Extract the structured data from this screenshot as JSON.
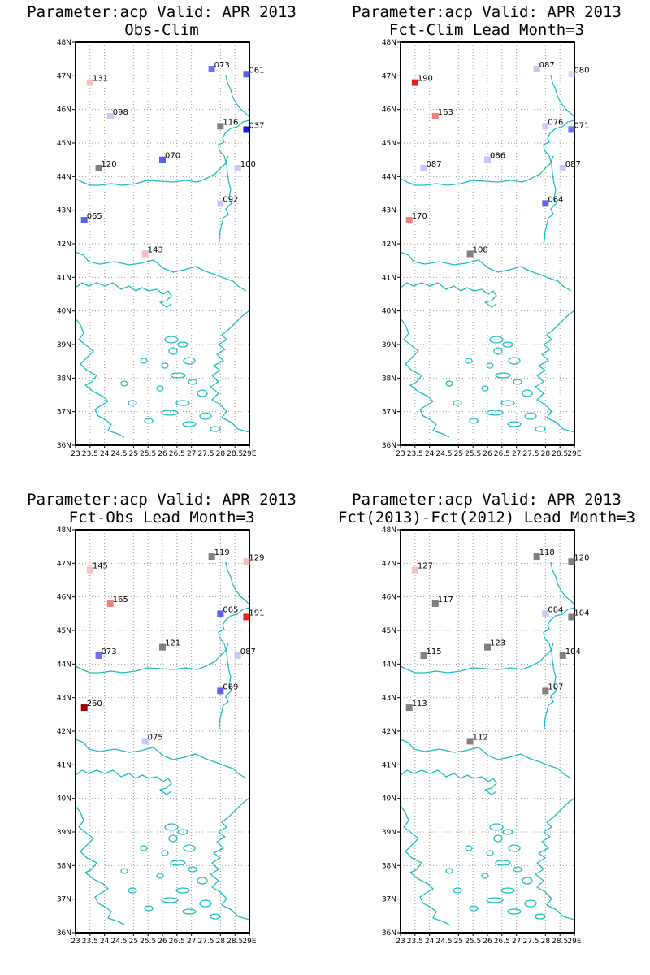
{
  "panels": [
    {
      "title_line1": "Parameter:acp Valid: APR 2013",
      "title_line2": "Obs-Clim",
      "stations": [
        {
          "lon": 23.5,
          "lat": 46.8,
          "label": "131",
          "color": "#f7c0c0"
        },
        {
          "lon": 27.7,
          "lat": 47.2,
          "label": "073",
          "color": "#7070f0"
        },
        {
          "lon": 28.9,
          "lat": 47.05,
          "label": "061",
          "color": "#5a5af0"
        },
        {
          "lon": 24.2,
          "lat": 45.8,
          "label": "098",
          "color": "#c8c8f8"
        },
        {
          "lon": 28.0,
          "lat": 45.5,
          "label": "116",
          "color": "#808080"
        },
        {
          "lon": 28.9,
          "lat": 45.4,
          "label": "037",
          "color": "#1818e8"
        },
        {
          "lon": 26.0,
          "lat": 44.5,
          "label": "070",
          "color": "#6060f0"
        },
        {
          "lon": 23.8,
          "lat": 44.25,
          "label": "120",
          "color": "#808080"
        },
        {
          "lon": 28.6,
          "lat": 44.25,
          "label": "100",
          "color": "#c8c8f8"
        },
        {
          "lon": 28.0,
          "lat": 43.2,
          "label": "092",
          "color": "#c8c8f8"
        },
        {
          "lon": 23.3,
          "lat": 42.7,
          "label": "065",
          "color": "#6060f0"
        },
        {
          "lon": 25.4,
          "lat": 41.7,
          "label": "143",
          "color": "#f7c0c0"
        }
      ]
    },
    {
      "title_line1": "Parameter:acp Valid: APR 2013",
      "title_line2": "Fct-Clim Lead Month=3",
      "stations": [
        {
          "lon": 23.5,
          "lat": 46.8,
          "label": "190",
          "color": "#f02020"
        },
        {
          "lon": 27.7,
          "lat": 47.2,
          "label": "087",
          "color": "#c8c8f8"
        },
        {
          "lon": 28.9,
          "lat": 47.05,
          "label": "080",
          "color": "#d8d8fa"
        },
        {
          "lon": 24.2,
          "lat": 45.8,
          "label": "163",
          "color": "#f08080"
        },
        {
          "lon": 28.0,
          "lat": 45.5,
          "label": "076",
          "color": "#c8c8f8"
        },
        {
          "lon": 28.9,
          "lat": 45.4,
          "label": "071",
          "color": "#7070f0"
        },
        {
          "lon": 26.0,
          "lat": 44.5,
          "label": "086",
          "color": "#c8c8f8"
        },
        {
          "lon": 23.8,
          "lat": 44.25,
          "label": "087",
          "color": "#c8c8f8"
        },
        {
          "lon": 28.6,
          "lat": 44.25,
          "label": "087",
          "color": "#c8c8f8"
        },
        {
          "lon": 28.0,
          "lat": 43.2,
          "label": "064",
          "color": "#6060f0"
        },
        {
          "lon": 23.3,
          "lat": 42.7,
          "label": "170",
          "color": "#f08080"
        },
        {
          "lon": 25.4,
          "lat": 41.7,
          "label": "108",
          "color": "#808080"
        }
      ]
    },
    {
      "title_line1": "Parameter:acp Valid: APR 2013",
      "title_line2": "Fct-Obs Lead Month=3",
      "stations": [
        {
          "lon": 23.5,
          "lat": 46.8,
          "label": "145",
          "color": "#f7c0c0"
        },
        {
          "lon": 27.7,
          "lat": 47.2,
          "label": "119",
          "color": "#808080"
        },
        {
          "lon": 28.9,
          "lat": 47.05,
          "label": "129",
          "color": "#f7c0c0"
        },
        {
          "lon": 24.2,
          "lat": 45.8,
          "label": "165",
          "color": "#f08080"
        },
        {
          "lon": 28.0,
          "lat": 45.5,
          "label": "065",
          "color": "#6060f0"
        },
        {
          "lon": 28.9,
          "lat": 45.4,
          "label": "191",
          "color": "#f02020"
        },
        {
          "lon": 26.0,
          "lat": 44.5,
          "label": "121",
          "color": "#808080"
        },
        {
          "lon": 23.8,
          "lat": 44.25,
          "label": "073",
          "color": "#7070f0"
        },
        {
          "lon": 28.6,
          "lat": 44.25,
          "label": "087",
          "color": "#c8c8f8"
        },
        {
          "lon": 28.0,
          "lat": 43.2,
          "label": "069",
          "color": "#6060f0"
        },
        {
          "lon": 23.3,
          "lat": 42.7,
          "label": "260",
          "color": "#a00000"
        },
        {
          "lon": 25.4,
          "lat": 41.7,
          "label": "075",
          "color": "#c8c8f8"
        }
      ]
    },
    {
      "title_line1": "Parameter:acp Valid: APR 2013",
      "title_line2": "Fct(2013)-Fct(2012) Lead Month=3",
      "stations": [
        {
          "lon": 23.5,
          "lat": 46.8,
          "label": "127",
          "color": "#f7c0c0"
        },
        {
          "lon": 27.7,
          "lat": 47.2,
          "label": "118",
          "color": "#808080"
        },
        {
          "lon": 28.9,
          "lat": 47.05,
          "label": "120",
          "color": "#808080"
        },
        {
          "lon": 24.2,
          "lat": 45.8,
          "label": "117",
          "color": "#808080"
        },
        {
          "lon": 28.0,
          "lat": 45.5,
          "label": "084",
          "color": "#c8c8f8"
        },
        {
          "lon": 28.9,
          "lat": 45.4,
          "label": "104",
          "color": "#808080"
        },
        {
          "lon": 26.0,
          "lat": 44.5,
          "label": "123",
          "color": "#808080"
        },
        {
          "lon": 23.8,
          "lat": 44.25,
          "label": "115",
          "color": "#808080"
        },
        {
          "lon": 28.6,
          "lat": 44.25,
          "label": "104",
          "color": "#808080"
        },
        {
          "lon": 28.0,
          "lat": 43.2,
          "label": "107",
          "color": "#808080"
        },
        {
          "lon": 23.3,
          "lat": 42.7,
          "label": "113",
          "color": "#808080"
        },
        {
          "lon": 25.4,
          "lat": 41.7,
          "label": "112",
          "color": "#808080"
        }
      ]
    }
  ],
  "axes": {
    "lat_labels": [
      "48N",
      "47N",
      "46N",
      "45N",
      "44N",
      "43N",
      "42N",
      "41N",
      "40N",
      "39N",
      "38N",
      "37N",
      "36N"
    ],
    "lon_labels": [
      "23",
      "23.5",
      "24",
      "24.5",
      "25",
      "25.5",
      "26",
      "26.5",
      "27",
      "27.5",
      "28",
      "28.5",
      "29E"
    ],
    "lon_range": [
      23,
      29
    ],
    "lat_range": [
      36,
      48
    ]
  },
  "colors": {
    "coastline": "#1fbfbf",
    "grid": "#9a9a9a",
    "frame": "#000000"
  }
}
